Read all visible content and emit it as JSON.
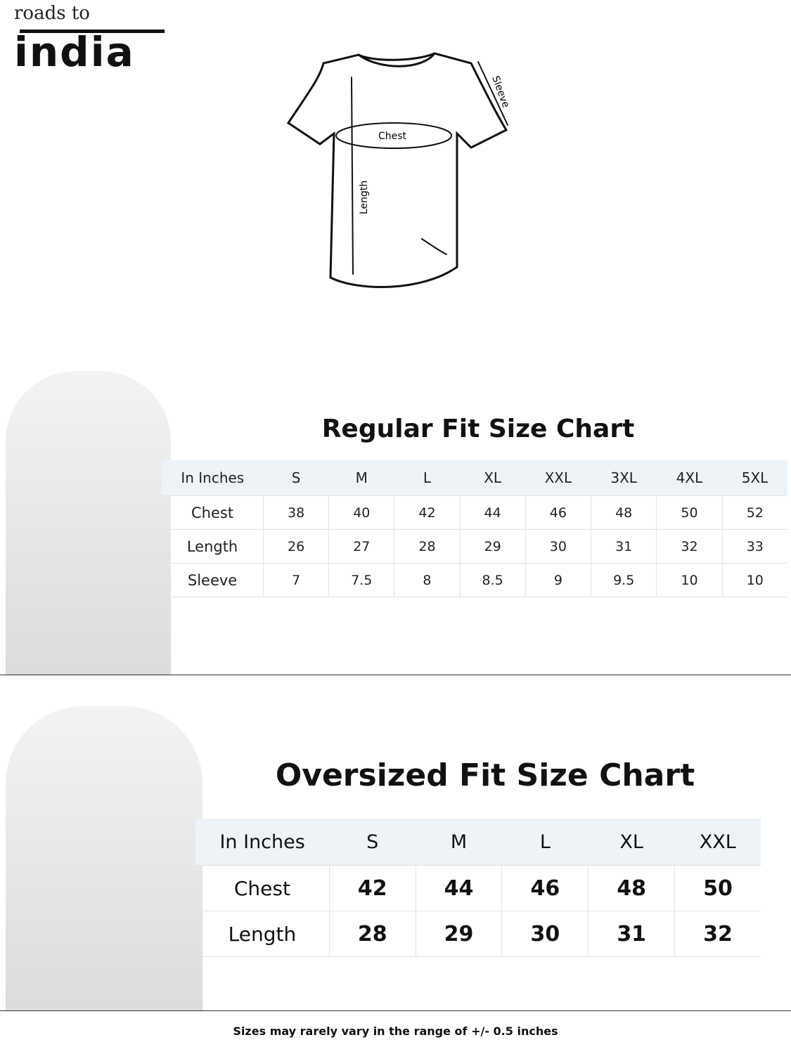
{
  "brand": {
    "logo_top": "roads to",
    "logo_main": "india"
  },
  "diagram": {
    "labels": {
      "sleeve": "Sleeve",
      "chest": "Chest",
      "length": "Length"
    }
  },
  "regular": {
    "title": "Regular Fit Size Chart",
    "corner": "In Inches",
    "sizes": [
      "S",
      "M",
      "L",
      "XL",
      "XXL",
      "3XL",
      "4XL",
      "5XL"
    ],
    "rows": [
      {
        "label": "Chest",
        "values": [
          "38",
          "40",
          "42",
          "44",
          "46",
          "48",
          "50",
          "52"
        ]
      },
      {
        "label": "Length",
        "values": [
          "26",
          "27",
          "28",
          "29",
          "30",
          "31",
          "32",
          "33"
        ]
      },
      {
        "label": "Sleeve",
        "values": [
          "7",
          "7.5",
          "8",
          "8.5",
          "9",
          "9.5",
          "10",
          "10"
        ]
      }
    ]
  },
  "oversized": {
    "title": "Oversized Fit Size Chart",
    "corner": "In Inches",
    "sizes": [
      "S",
      "M",
      "L",
      "XL",
      "XXL"
    ],
    "rows": [
      {
        "label": "Chest",
        "values": [
          "42",
          "44",
          "46",
          "48",
          "50"
        ]
      },
      {
        "label": "Length",
        "values": [
          "28",
          "29",
          "30",
          "31",
          "32"
        ]
      }
    ]
  },
  "footer": {
    "note": "Sizes may rarely vary in the range of +/- 0.5 inches"
  },
  "colors": {
    "header_bg": "#eef3f8",
    "text": "#111111"
  }
}
